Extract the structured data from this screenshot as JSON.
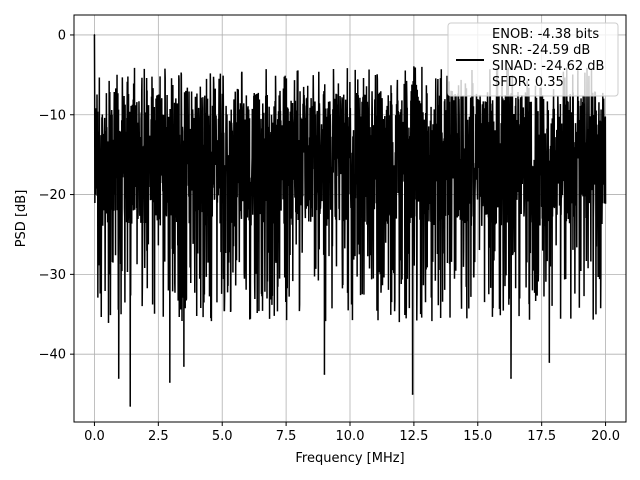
{
  "chart_data": {
    "type": "line",
    "title": "",
    "xlabel": "Frequency [MHz]",
    "ylabel": "PSD [dB]",
    "xlim": [
      -0.8,
      20.8
    ],
    "ylim": [
      -48.5,
      2.5
    ],
    "xticks": [
      0.0,
      2.5,
      5.0,
      7.5,
      10.0,
      12.5,
      15.0,
      17.5,
      20.0
    ],
    "xtick_labels": [
      "0.0",
      "2.5",
      "5.0",
      "7.5",
      "10.0",
      "12.5",
      "15.0",
      "17.5",
      "20.0"
    ],
    "yticks": [
      0,
      -10,
      -20,
      -30,
      -40
    ],
    "ytick_labels": [
      "0",
      "−10",
      "−20",
      "−30",
      "−40"
    ],
    "grid": true,
    "legend_position": "top-right",
    "series_color": "#000000",
    "series": [
      {
        "name": "",
        "x_range": [
          0,
          20
        ],
        "band_upper_db": -7,
        "band_lower_db": -24,
        "max_db": 0,
        "min_db": -46.5
      }
    ],
    "annotations": [
      {
        "x": 0.0,
        "y": 0.0
      },
      {
        "x": 0.2,
        "y": -28.0
      },
      {
        "x": 0.55,
        "y": -36.0
      },
      {
        "x": 0.95,
        "y": -43.0
      },
      {
        "x": 1.4,
        "y": -46.5
      },
      {
        "x": 2.95,
        "y": -43.5
      },
      {
        "x": 3.5,
        "y": -41.5
      },
      {
        "x": 9.0,
        "y": -42.5
      },
      {
        "x": 12.45,
        "y": -45.0
      },
      {
        "x": 16.3,
        "y": -43.0
      },
      {
        "x": 17.8,
        "y": -41.0
      },
      {
        "x": 3.4,
        "y": -5.0
      },
      {
        "x": 12.5,
        "y": -4.0
      }
    ],
    "legend": {
      "lines": [
        "ENOB: -4.38 bits",
        "SNR: -24.59 dB",
        "SINAD: -24.62 dB",
        "SFDR: 0.35"
      ]
    }
  }
}
